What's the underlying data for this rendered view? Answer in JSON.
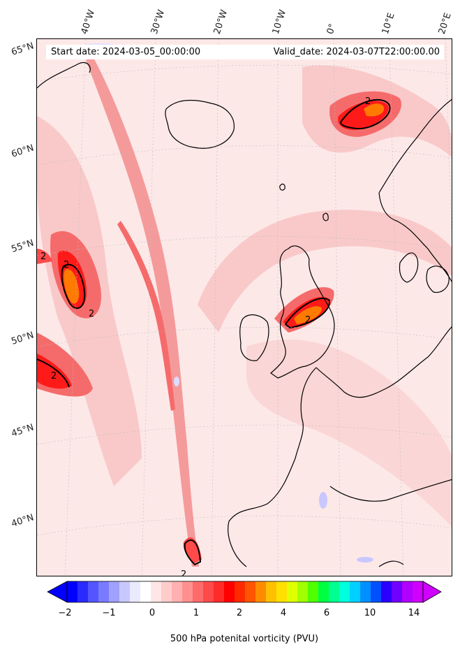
{
  "header": {
    "start_date": "Start date: 2024-03-05_00:00:00",
    "valid_date": "Valid_date: 2024-03-07T22:00:00.00"
  },
  "map": {
    "lon_labels": [
      "40°W",
      "30°W",
      "20°W",
      "10°W",
      "0°",
      "10°E",
      "20°E"
    ],
    "lat_labels": [
      "65°N",
      "60°N",
      "55°N",
      "50°N",
      "45°N",
      "40°N"
    ],
    "contour_label": "2",
    "colors": {
      "background_pv": "#fde8e8",
      "low_pv": "#f9b8b8",
      "mid_pv": "#f56b6b",
      "high_pv": "#ff1a1a",
      "peak_pv": "#ff7a00",
      "negative_pv": "#c8c8ff",
      "coastline": "#000000"
    }
  },
  "colorbar": {
    "label": "500 hPa potenital vorticity (PVU)",
    "ticks": [
      "−2",
      "−1",
      "0",
      "1",
      "2",
      "4",
      "6",
      "10",
      "14"
    ],
    "colors": [
      "#0000ff",
      "#2a2aff",
      "#5555ff",
      "#7a7aff",
      "#a0a0ff",
      "#c8c8ff",
      "#eaeaff",
      "#ffffff",
      "#ffe6e6",
      "#ffcccc",
      "#ffb0b0",
      "#ff9090",
      "#ff6b6b",
      "#ff4a4a",
      "#ff2a2a",
      "#ff0000",
      "#ff2a00",
      "#ff5500",
      "#ff8c00",
      "#ffc000",
      "#ffe000",
      "#e0ff00",
      "#a0ff00",
      "#50ff00",
      "#00ff40",
      "#00ff90",
      "#00ffdd",
      "#00d0ff",
      "#0090ff",
      "#0050ff",
      "#2a00ff",
      "#7000ff",
      "#b000ff",
      "#d000ff"
    ]
  }
}
